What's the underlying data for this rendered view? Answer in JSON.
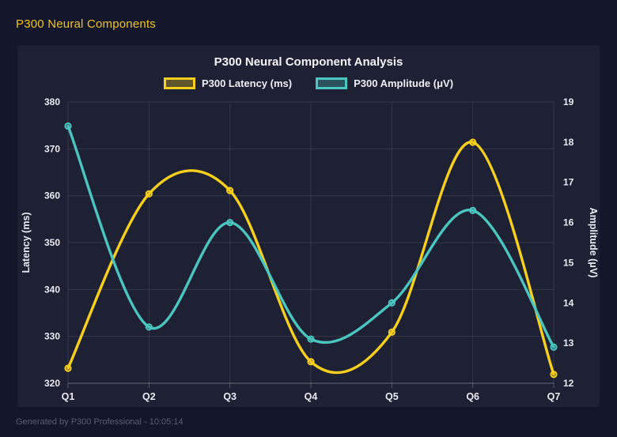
{
  "page": {
    "header_title": "P300 Neural Components",
    "footer": "Generated by P300 Professional - 10:05:14"
  },
  "chart_data": {
    "type": "line",
    "title": "P300 Neural Component Analysis",
    "categories": [
      "Q1",
      "Q2",
      "Q3",
      "Q4",
      "Q5",
      "Q6",
      "Q7"
    ],
    "series": [
      {
        "name": "P300 Latency (ms)",
        "axis": "left",
        "color": "#f9cf1d",
        "swatch_fill": "rgba(249,207,29,0.30)",
        "point_fill": "rgba(249,207,29,0.30)",
        "values": [
          323.2,
          360.4,
          361.1,
          324.6,
          330.9,
          371.4,
          321.9
        ]
      },
      {
        "name": "P300 Amplitude (μV)",
        "axis": "right",
        "color": "#4bc5c0",
        "swatch_fill": "rgba(75,197,192,0.30)",
        "point_fill": "rgba(75,197,192,0.30)",
        "values": [
          18.4,
          13.4,
          16.0,
          13.1,
          14.0,
          16.3,
          12.9
        ]
      }
    ],
    "left_axis": {
      "label": "Latency (ms)",
      "min": 320,
      "max": 380,
      "step": 10
    },
    "right_axis": {
      "label": "Amplitude (μV)",
      "min": 12,
      "max": 19,
      "step": 1
    },
    "grid": true,
    "legend_position": "top",
    "smooth": true
  },
  "colors": {
    "page_bg": "#14162b",
    "panel_bg": "#1e2133",
    "header_text": "#f0c41f",
    "title_text": "#f2f4fa",
    "tick_text": "#e9ebf3",
    "grid_line": "rgba(255,255,255,0.10)",
    "axis_line": "rgba(255,255,255,0.25)",
    "footer_text": "#595e75"
  }
}
